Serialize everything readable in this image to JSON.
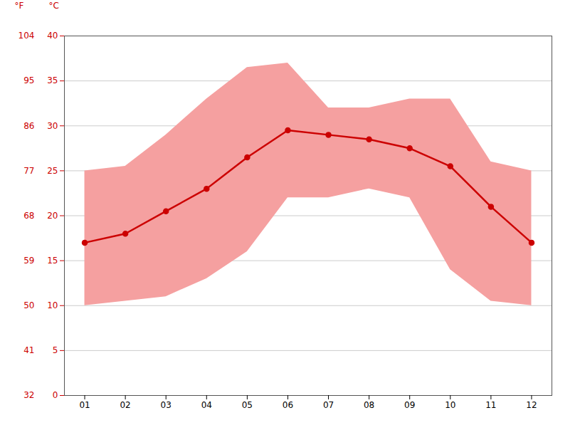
{
  "chart_data": {
    "type": "line",
    "x": [
      1,
      2,
      3,
      4,
      5,
      6,
      7,
      8,
      9,
      10,
      11,
      12
    ],
    "xlim": [
      0.5,
      12.5
    ],
    "xticks": [
      {
        "value": 1,
        "label": "01"
      },
      {
        "value": 2,
        "label": "02"
      },
      {
        "value": 3,
        "label": "03"
      },
      {
        "value": 4,
        "label": "04"
      },
      {
        "value": 5,
        "label": "05"
      },
      {
        "value": 6,
        "label": "06"
      },
      {
        "value": 7,
        "label": "07"
      },
      {
        "value": 8,
        "label": "08"
      },
      {
        "value": 9,
        "label": "09"
      },
      {
        "value": 10,
        "label": "10"
      },
      {
        "value": 11,
        "label": "11"
      },
      {
        "value": 12,
        "label": "12"
      }
    ],
    "ylim": [
      0,
      40
    ],
    "yticks": [
      0,
      5,
      10,
      15,
      20,
      25,
      30,
      35,
      40
    ],
    "y_label": "°C",
    "y2lim": [
      32,
      104
    ],
    "y2ticks": [
      32,
      41,
      50,
      59,
      68,
      77,
      86,
      95,
      104
    ],
    "y2_label": "°F",
    "grid": true,
    "series": [
      {
        "type": "area",
        "color": "#f5a0a0",
        "low": [
          10,
          10.5,
          11,
          13,
          16,
          22,
          22,
          23,
          22,
          14,
          10.5,
          10
        ],
        "high": [
          25,
          25.5,
          29,
          33,
          36.5,
          37,
          32,
          32,
          33,
          33,
          26,
          25
        ]
      },
      {
        "type": "line",
        "color": "#cc0000",
        "marker": "circle",
        "values": [
          17,
          18,
          20.5,
          23,
          26.5,
          29.5,
          29,
          28.5,
          27.5,
          25.5,
          21,
          17
        ]
      }
    ]
  }
}
